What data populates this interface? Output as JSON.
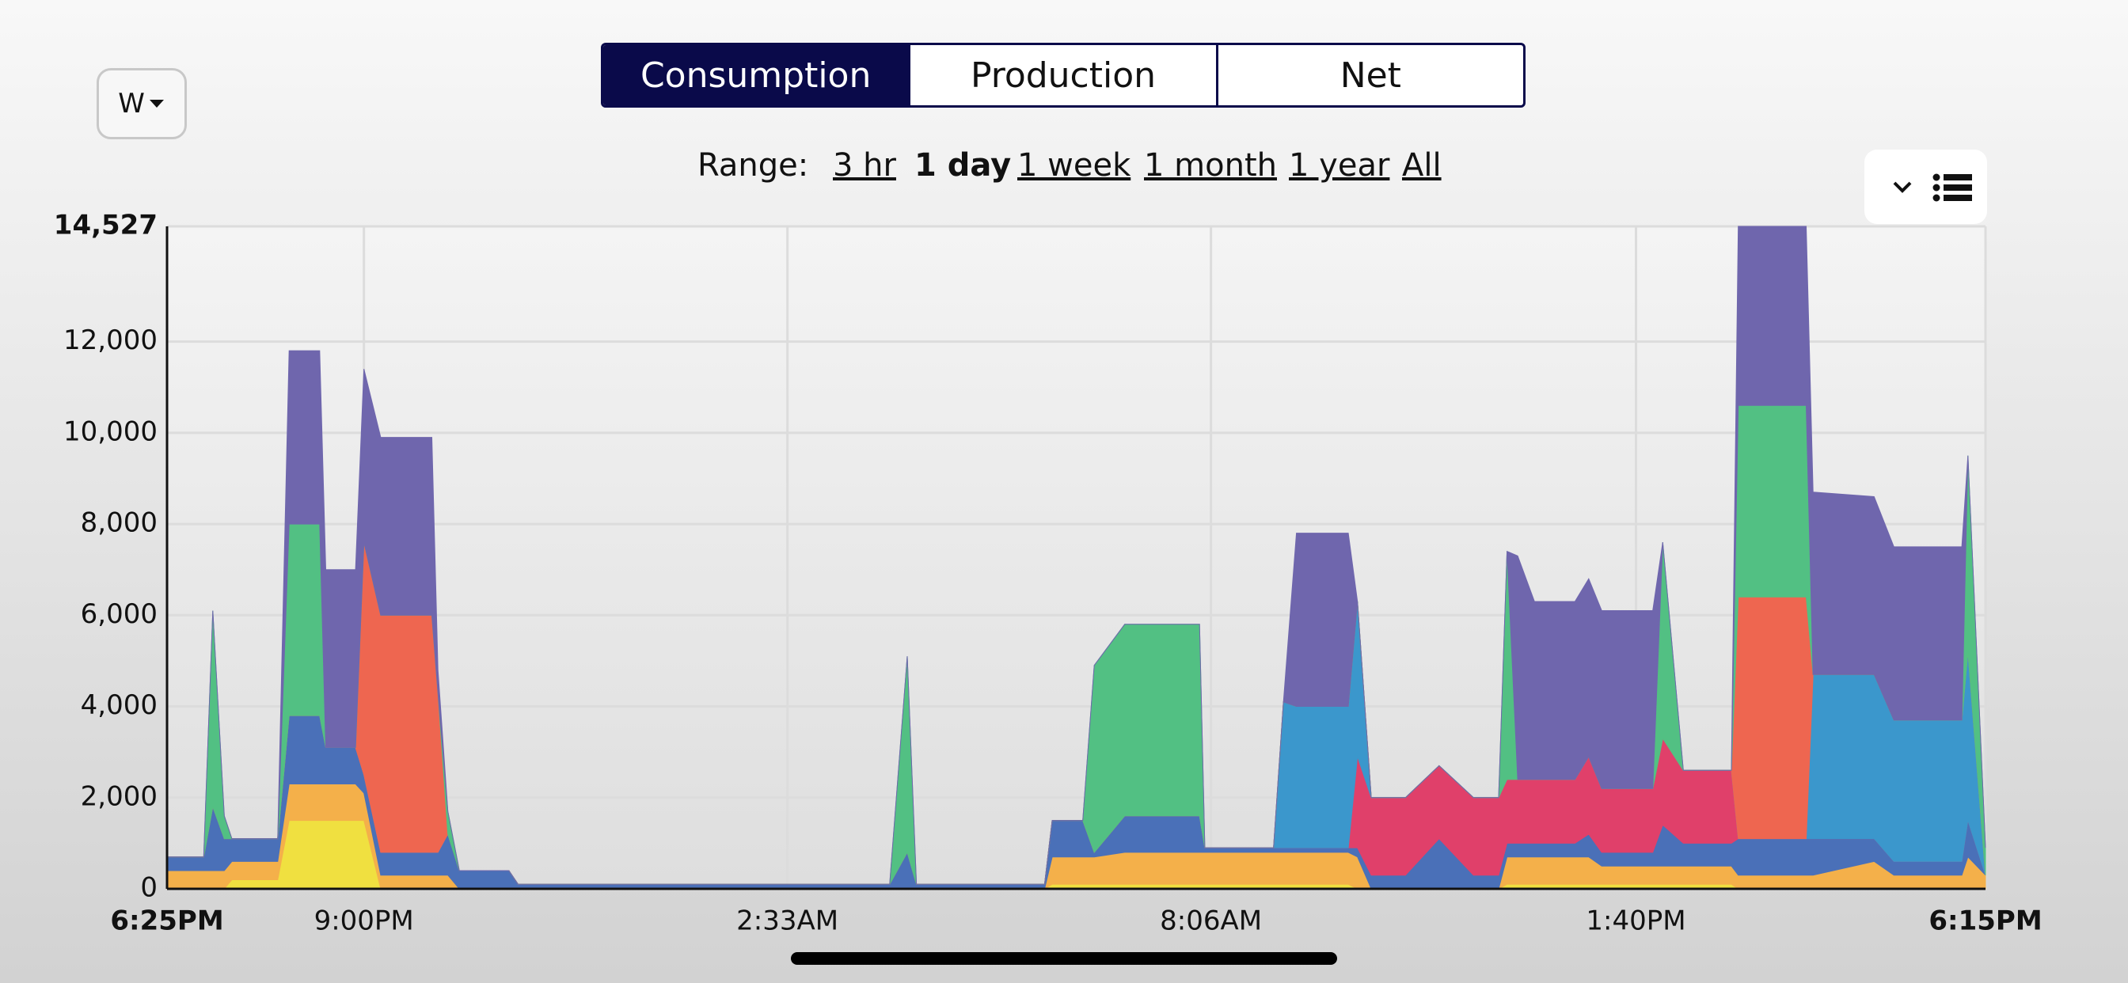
{
  "ui": {
    "unit": "W",
    "tabs": [
      "Consumption",
      "Production",
      "Net"
    ],
    "range_label": "Range:",
    "ranges": [
      "3 hr",
      "1 day",
      "1 week",
      "1 month",
      "1 year",
      "All"
    ]
  },
  "chart_data": {
    "type": "area",
    "stacked": true,
    "grid": true,
    "x": [
      0,
      0.48,
      0.6,
      0.75,
      0.85,
      1.45,
      1.6,
      2.0,
      2.08,
      2.47,
      2.58,
      2.8,
      3.47,
      3.55,
      3.68,
      3.83,
      4.48,
      4.6,
      9.47,
      9.7,
      9.82,
      11.5,
      11.6,
      12.0,
      12.15,
      12.55,
      13.53,
      13.6,
      14.5,
      14.63,
      14.8,
      15.48,
      15.6,
      15.78,
      16.23,
      16.67,
      17.12,
      17.45,
      17.56,
      17.7,
      17.92,
      18.45,
      18.63,
      18.8,
      19.47,
      19.6,
      19.87,
      20.5,
      20.59,
      21.48,
      21.57,
      22.37,
      22.63,
      23.52,
      23.6,
      23.83
    ],
    "series": [
      {
        "color": "#f0e040",
        "values": [
          0,
          0,
          0,
          0,
          200,
          200,
          1500,
          1500,
          1500,
          1500,
          1500,
          0,
          0,
          0,
          0,
          0,
          0,
          0,
          0,
          0,
          0,
          0,
          100,
          100,
          100,
          100,
          100,
          100,
          100,
          100,
          100,
          100,
          0,
          0,
          0,
          0,
          0,
          0,
          100,
          100,
          100,
          100,
          100,
          100,
          100,
          100,
          100,
          100,
          0,
          0,
          0,
          0,
          0,
          0,
          0,
          0
        ]
      },
      {
        "color": "#f4b04a",
        "values": [
          400,
          400,
          400,
          400,
          400,
          400,
          800,
          800,
          800,
          800,
          600,
          300,
          300,
          300,
          300,
          0,
          0,
          0,
          0,
          0,
          0,
          0,
          600,
          600,
          600,
          700,
          700,
          700,
          700,
          700,
          700,
          700,
          700,
          0,
          0,
          0,
          0,
          0,
          600,
          600,
          600,
          600,
          600,
          400,
          400,
          400,
          400,
          400,
          300,
          300,
          300,
          600,
          300,
          300,
          700,
          300
        ]
      },
      {
        "color": "#4a70b8",
        "values": [
          300,
          300,
          1400,
          700,
          500,
          500,
          1500,
          1500,
          800,
          800,
          400,
          500,
          500,
          500,
          900,
          400,
          400,
          100,
          100,
          800,
          100,
          100,
          800,
          800,
          100,
          800,
          800,
          100,
          100,
          100,
          100,
          100,
          200,
          300,
          300,
          1100,
          300,
          300,
          300,
          300,
          300,
          300,
          500,
          300,
          300,
          900,
          500,
          500,
          800,
          800,
          800,
          500,
          300,
          300,
          800,
          0
        ]
      },
      {
        "color": "#e0406a",
        "values": [
          0,
          0,
          0,
          0,
          0,
          0,
          0,
          0,
          0,
          0,
          0,
          0,
          0,
          0,
          0,
          0,
          0,
          0,
          0,
          0,
          0,
          0,
          0,
          0,
          0,
          0,
          0,
          0,
          0,
          0,
          0,
          0,
          2000,
          1700,
          1700,
          1600,
          1700,
          1700,
          1400,
          1400,
          1400,
          1400,
          1700,
          1400,
          1400,
          1900,
          1600,
          1600,
          0,
          0,
          0,
          0,
          0,
          0,
          0,
          0
        ]
      },
      {
        "color": "#3b97cc",
        "values": [
          0,
          0,
          0,
          0,
          0,
          0,
          0,
          0,
          0,
          0,
          0,
          0,
          0,
          0,
          0,
          0,
          0,
          0,
          0,
          0,
          0,
          0,
          0,
          0,
          0,
          0,
          0,
          0,
          0,
          3200,
          3100,
          3100,
          3400,
          0,
          0,
          0,
          0,
          0,
          0,
          0,
          0,
          0,
          0,
          0,
          0,
          0,
          0,
          0,
          0,
          0,
          3600,
          3600,
          3100,
          3100,
          3700,
          0
        ]
      },
      {
        "color": "#ee6650",
        "values": [
          0,
          0,
          0,
          0,
          0,
          0,
          0,
          0,
          0,
          0,
          5100,
          5200,
          5200,
          3500,
          0,
          0,
          0,
          0,
          0,
          0,
          0,
          0,
          0,
          0,
          0,
          0,
          0,
          0,
          0,
          0,
          0,
          0,
          0,
          0,
          0,
          0,
          0,
          0,
          0,
          0,
          0,
          0,
          0,
          0,
          0,
          0,
          0,
          0,
          5300,
          5300,
          0,
          0,
          0,
          0,
          0,
          0
        ]
      },
      {
        "color": "#52c083",
        "values": [
          0,
          0,
          4300,
          500,
          0,
          0,
          4200,
          4200,
          0,
          0,
          0,
          0,
          0,
          0,
          500,
          0,
          0,
          0,
          0,
          4300,
          0,
          0,
          0,
          0,
          4100,
          4200,
          4200,
          0,
          0,
          0,
          0,
          0,
          0,
          0,
          0,
          0,
          0,
          0,
          5000,
          0,
          0,
          0,
          0,
          0,
          0,
          4300,
          0,
          0,
          4200,
          4200,
          0,
          0,
          0,
          0,
          4300,
          600
        ]
      },
      {
        "color": "#6f66ad",
        "values": [
          0,
          0,
          0,
          0,
          0,
          0,
          3800,
          3800,
          3900,
          3900,
          3800,
          3900,
          3900,
          500,
          0,
          0,
          0,
          0,
          0,
          0,
          0,
          0,
          0,
          0,
          0,
          0,
          0,
          0,
          0,
          0,
          3800,
          3800,
          0,
          0,
          0,
          0,
          0,
          0,
          0,
          4900,
          3900,
          3900,
          3900,
          3900,
          3900,
          0,
          0,
          0,
          3927,
          3927,
          4000,
          3900,
          3800,
          3800,
          0,
          0
        ]
      }
    ],
    "xlim": [
      0,
      23.83
    ],
    "xticks": [
      {
        "value": 0,
        "label": "6:25PM"
      },
      {
        "value": 2.58,
        "label": "9:00PM"
      },
      {
        "value": 8.13,
        "label": "2:33AM"
      },
      {
        "value": 13.68,
        "label": "8:06AM"
      },
      {
        "value": 19.25,
        "label": "1:40PM"
      },
      {
        "value": 23.83,
        "label": "6:15PM"
      }
    ],
    "ylim": [
      0,
      14527
    ],
    "yticks": [
      0,
      {
        "value": 2000,
        "label": "2,000"
      },
      {
        "value": 4000,
        "label": "4,000"
      },
      {
        "value": 6000,
        "label": "6,000"
      },
      {
        "value": 8000,
        "label": "8,000"
      },
      {
        "value": 10000,
        "label": "10,000"
      },
      {
        "value": 12000,
        "label": "12,000"
      },
      {
        "value": 14527,
        "label": "14,527"
      }
    ]
  }
}
